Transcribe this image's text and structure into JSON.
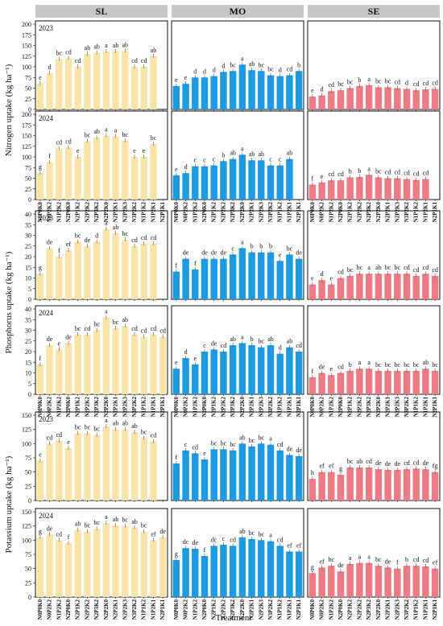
{
  "chart_data": {
    "type": "bar",
    "strips": [
      "SL",
      "MO",
      "SE"
    ],
    "x_title": "Treatment",
    "categories": [
      "N0P0K0",
      "N0P2K2",
      "N1P2K2",
      "N2P0K0",
      "N2P1K2",
      "N2P2K2",
      "N2P3K2",
      "N2P2K0",
      "N2P2K1",
      "N2P2K3",
      "N3P2K2",
      "N1P1K2",
      "N1P2K1",
      "N2P1K1"
    ],
    "colors": {
      "SL": "#fbe3a6",
      "MO": "#1a9be6",
      "SE": "#f07a82",
      "strip_bg": "#c8c8c8"
    },
    "rows": [
      {
        "y_title": "Nitrogen uptake (kg ha⁻¹)",
        "ylim": [
          0,
          200
        ],
        "yticks": [
          0,
          25,
          50,
          75,
          100,
          125,
          150,
          175,
          200
        ],
        "years": [
          {
            "year": "2023",
            "SL": {
              "values": [
                60,
                85,
                118,
                120,
                100,
                130,
                133,
                136,
                136,
                137,
                100,
                100,
                125,
                null
              ],
              "sig": [
                "e",
                "d",
                "bc",
                "cd",
                "cd",
                "ab",
                "ab",
                "a",
                "ab",
                "ab",
                "cd",
                "cd",
                "ab",
                ""
              ]
            },
            "MO": {
              "values": [
                55,
                60,
                75,
                75,
                78,
                88,
                90,
                105,
                92,
                90,
                80,
                78,
                80,
                90
              ],
              "sig": [
                "e",
                "e",
                "d",
                "d",
                "d",
                "d",
                "bc",
                "a",
                "ab",
                "bc",
                "bc",
                "d",
                "cd",
                "b"
              ]
            },
            "SE": {
              "values": [
                30,
                33,
                43,
                45,
                50,
                55,
                57,
                52,
                52,
                50,
                48,
                45,
                47,
                48
              ],
              "sig": [
                "e",
                "d",
                "cd",
                "bc",
                "bc",
                "b",
                "a",
                "bc",
                "bc",
                "cd",
                "d",
                "cd",
                "cd",
                "cd"
              ]
            }
          },
          {
            "year": "2024",
            "SL": {
              "values": [
                62,
                88,
                120,
                122,
                100,
                137,
                145,
                150,
                148,
                138,
                100,
                100,
                130,
                null
              ],
              "sig": [
                "g",
                "f",
                "cd",
                "cd",
                "e",
                "bc",
                "ab",
                "a",
                "a",
                "bc",
                "e",
                "e",
                "bc",
                ""
              ]
            },
            "MO": {
              "values": [
                57,
                62,
                78,
                78,
                80,
                90,
                95,
                105,
                92,
                92,
                80,
                80,
                95,
                null
              ],
              "sig": [
                "e",
                "d",
                "c",
                "c",
                "c",
                "b",
                "ab",
                "a",
                "ab",
                "ab",
                "c",
                "c",
                "ab",
                ""
              ]
            },
            "SE": {
              "values": [
                35,
                40,
                45,
                45,
                52,
                53,
                58,
                52,
                50,
                50,
                48,
                46,
                48,
                null
              ],
              "sig": [
                "f",
                "e",
                "cd",
                "cd",
                "b",
                "b",
                "a",
                "bc",
                "cd",
                "cd",
                "cd",
                "cd",
                "cd",
                ""
              ]
            }
          }
        ]
      },
      {
        "y_title": "Phosphorus uptake (kg ha⁻¹)",
        "ylim": [
          0,
          40
        ],
        "yticks": [
          0,
          5,
          10,
          15,
          20,
          25,
          30,
          35,
          40
        ],
        "years": [
          {
            "year": "2023",
            "SL": {
              "values": [
                12,
                24,
                20,
                23,
                27,
                25,
                27,
                33,
                31,
                28,
                25,
                26,
                26,
                null
              ],
              "sig": [
                "g",
                "de",
                "f",
                "ef",
                "bc",
                "de",
                "d",
                "a",
                "ab",
                "bc",
                "cd",
                "cd",
                "cd",
                ""
              ]
            },
            "MO": {
              "values": [
                13,
                19,
                14,
                19,
                19,
                19,
                21,
                24,
                22,
                22,
                22,
                18,
                21,
                19
              ],
              "sig": [
                "f",
                "de",
                "f",
                "de",
                "de",
                "de",
                "c",
                "a",
                "b",
                "b",
                "b",
                "e",
                "bc",
                "de"
              ]
            },
            "SE": {
              "values": [
                7,
                9,
                7,
                10,
                11,
                12,
                12,
                12,
                12,
                12,
                12,
                11,
                12,
                11
              ],
              "sig": [
                "e",
                "d",
                "e",
                "cd",
                "bc",
                "bc",
                "a",
                "ab",
                "bc",
                "bc",
                "cd",
                "cd",
                "cd",
                "cd"
              ]
            }
          },
          {
            "year": "2024",
            "SL": {
              "values": [
                14,
                23,
                21,
                24,
                28,
                28,
                30,
                36,
                31,
                32,
                28,
                27,
                28,
                27
              ],
              "sig": [
                "f",
                "de",
                "e",
                "de",
                "bc",
                "cd",
                "bc",
                "a",
                "bc",
                "ab",
                "cd",
                "cd",
                "cd",
                "cd"
              ]
            },
            "MO": {
              "values": [
                12,
                17,
                14,
                20,
                21,
                20,
                23,
                24,
                23,
                22,
                23,
                19,
                22,
                20
              ],
              "sig": [
                "e",
                "d",
                "e",
                "c",
                "de",
                "cd",
                "ab",
                "a",
                "b",
                "bc",
                "ab",
                "d",
                "ab",
                "cd"
              ]
            },
            "SE": {
              "values": [
                8,
                10,
                9,
                10,
                11,
                12,
                12,
                11,
                11,
                11,
                11,
                11,
                12,
                11
              ],
              "sig": [
                "f",
                "de",
                "e",
                "cd",
                "b",
                "a",
                "a",
                "bc",
                "bc",
                "bc",
                "bc",
                "bc",
                "ab",
                "bc"
              ]
            }
          }
        ]
      },
      {
        "y_title": "Potassium uptake (kg ha⁻¹)",
        "ylim": [
          0,
          150
        ],
        "yticks": [
          0,
          25,
          50,
          75,
          100,
          125,
          150
        ],
        "years": [
          {
            "year": "2023",
            "SL": {
              "values": [
                70,
                100,
                105,
                92,
                118,
                118,
                115,
                130,
                125,
                125,
                120,
                110,
                104,
                null
              ],
              "sig": [
                "e",
                "cd",
                "cd",
                "e",
                "bc",
                "bc",
                "bc",
                "a",
                "ab",
                "ab",
                "ab",
                "bc",
                "cd",
                ""
              ]
            },
            "MO": {
              "values": [
                65,
                88,
                83,
                72,
                90,
                90,
                88,
                100,
                95,
                100,
                98,
                88,
                80,
                78
              ],
              "sig": [
                "f",
                "c",
                "cd",
                "e",
                "bc",
                "bc",
                "bc",
                "ab",
                "bc",
                "bc",
                "a",
                "cd",
                "de",
                "de"
              ]
            },
            "SE": {
              "values": [
                38,
                50,
                50,
                45,
                58,
                58,
                58,
                55,
                54,
                54,
                55,
                56,
                55,
                50
              ],
              "sig": [
                "h",
                "ef",
                "ef",
                "g",
                "bc",
                "ab",
                "cd",
                "de",
                "de",
                "de",
                "cd",
                "cd",
                "de",
                "fg"
              ]
            }
          },
          {
            "year": "2024",
            "SL": {
              "values": [
                105,
                110,
                100,
                95,
                118,
                115,
                120,
                130,
                126,
                125,
                122,
                115,
                100,
                105
              ],
              "sig": [
                "g",
                "de",
                "cd",
                "f",
                "ab",
                "bc",
                "bc",
                "a",
                "ab",
                "bc",
                "ab",
                "bc",
                "ef",
                "de"
              ]
            },
            "MO": {
              "values": [
                65,
                86,
                85,
                72,
                90,
                92,
                90,
                105,
                102,
                100,
                98,
                90,
                80,
                80
              ],
              "sig": [
                "g",
                "dc",
                "de",
                "f",
                "dc",
                "c",
                "cd",
                "ab",
                "bc",
                "bc",
                "a",
                "cd",
                "ef",
                "ef"
              ]
            },
            "SE": {
              "values": [
                42,
                52,
                55,
                45,
                58,
                60,
                60,
                55,
                52,
                50,
                55,
                55,
                54,
                50
              ],
              "sig": [
                "g",
                "ef",
                "bc",
                "de",
                "a",
                "a",
                "a",
                "bc",
                "de",
                "f",
                "b",
                "cd",
                "cd",
                "ef"
              ]
            }
          }
        ]
      }
    ]
  }
}
